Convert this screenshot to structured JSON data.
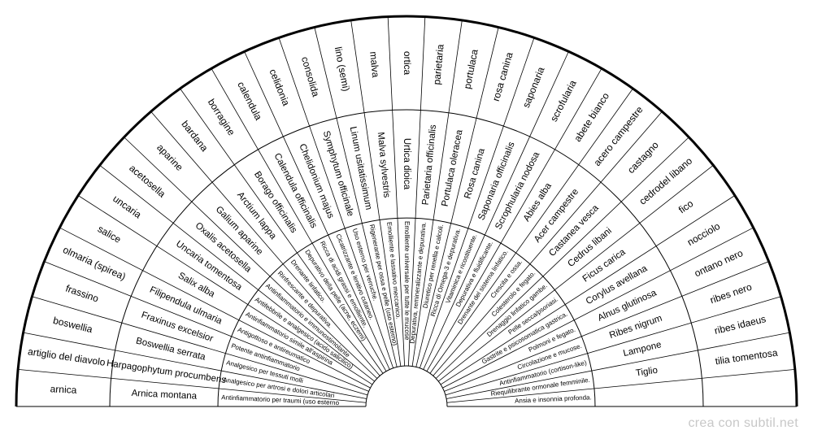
{
  "footer": "crea con subtil.net",
  "colors": {
    "line": "#000000",
    "text": "#000000",
    "background": "#ffffff",
    "footer": "#c8c8c8"
  },
  "segments": [
    {
      "common": "arnica",
      "latin": "Arnica montana",
      "use": "Antinfiammatorio per traumi (uso esterno"
    },
    {
      "common": "artiglio del diavolo",
      "latin": "Harpagophytum procumbens",
      "use": "Analgesico per artrosi e dolori articolari"
    },
    {
      "common": "boswellia",
      "latin": "Boswellia serrata",
      "use": "Analgesico per tessuti molli"
    },
    {
      "common": "frassino",
      "latin": "Fraxinus excelsior",
      "use": "Potente antinfiammatorio"
    },
    {
      "common": "olmaria (spirea)",
      "latin": "Filipendula ulmaria",
      "use": "Antigottoso e antireumatico"
    },
    {
      "common": "salice",
      "latin": "Salix alba",
      "use": "Antinfiammatorio simile all'aspirina"
    },
    {
      "common": "uncaria",
      "latin": "Uncaria tomentosa",
      "use": "Antifebbrile e analgesico (acido salicilico)"
    },
    {
      "common": "acetosella",
      "latin": "Oxalis acetosella",
      "use": "Antinfiammatorio e immunostimolante"
    },
    {
      "common": "aparine",
      "latin": "Galium aparine",
      "use": "Rinfrescante e depurativa."
    },
    {
      "common": "bardana",
      "latin": "Arctium lappa",
      "use": "Drenante linfatico."
    },
    {
      "common": "borragine",
      "latin": "Borago officinalis",
      "use": "Depurativo della pelle (acne, eczemi)"
    },
    {
      "common": "calendula",
      "latin": "Calendula officinalis",
      "use": "Ricca di acidi grassi e emolliente."
    },
    {
      "common": "celidonia",
      "latin": "Chelidonium majus",
      "use": "Cicatrizzante e lenitivo cutaneo."
    },
    {
      "common": "consolida",
      "latin": "Symphytum officinale",
      "use": "Uso esterno per verruche."
    },
    {
      "common": "lino (semi)",
      "latin": "Linum usitatissimum",
      "use": "Rigenerante per ossa e pelle (uso esterno)"
    },
    {
      "common": "malva",
      "latin": "Malva sylvestris",
      "use": "Emolliente e lassativo meccanico."
    },
    {
      "common": "ortica",
      "latin": "Urtica dioica",
      "use": "Emolliente universale per tutte le mucose"
    },
    {
      "common": "parietaria",
      "latin": "Parietaria officinalis",
      "use": "Depurativa, remineralizzante e depurativa."
    },
    {
      "common": "portulaca",
      "latin": "Portulaca oleracea",
      "use": "Diuretico per renella e calcoli."
    },
    {
      "common": "rosa canina",
      "latin": "Rosa canina",
      "use": "Ricca di Omega-3 e depurativa."
    },
    {
      "common": "saponaria",
      "latin": "Saponaria officinalis",
      "use": "Vitaminica e ricostituente."
    },
    {
      "common": "scrofularia",
      "latin": "Scrophularia nodosa",
      "use": "Depurativa e fluidificante."
    },
    {
      "common": "abete bianco",
      "latin": "Abies alba",
      "use": "Drenante del sistema linfatico."
    },
    {
      "common": "acero campestre",
      "latin": "Acer campestre",
      "use": "Crescita e ossa."
    },
    {
      "common": "castagno",
      "latin": "Castanea vesca",
      "use": "Colesterolo e fegato."
    },
    {
      "common": "cedrodel libano",
      "latin": "Cedrus libani",
      "use": "Drenaggio linfatico gambe."
    },
    {
      "common": "fico",
      "latin": "Ficus carica",
      "use": "Pelle secca/psoriasi."
    },
    {
      "common": "nocciolo",
      "latin": "Corylus avellana",
      "use": "Gastrite e psicosomatica gastrica."
    },
    {
      "common": "ontano nero",
      "latin": "Alnus glutinosa",
      "use": "Polmoni e fegato."
    },
    {
      "common": "ribes nero",
      "latin": "Ribes nigrum",
      "use": "Circolazione e mucose."
    },
    {
      "common": "ribes idaeus",
      "latin": "Lampone",
      "use": "Antinfiammatorio (cortison-like)"
    },
    {
      "common": "tilia tomentosa",
      "latin": "Tiglio",
      "use": "Riequilibrante ormonale femminile."
    },
    {
      "common": "",
      "latin": "",
      "use": "Ansia e insonnia profonda."
    }
  ]
}
